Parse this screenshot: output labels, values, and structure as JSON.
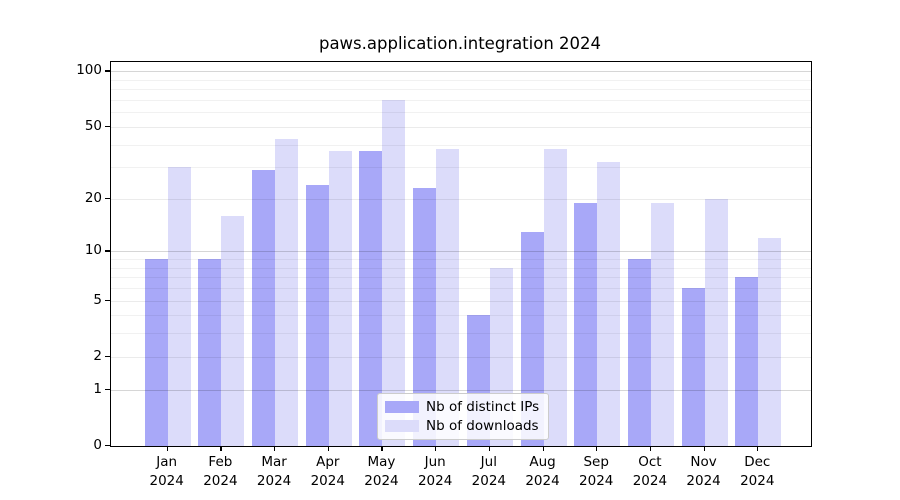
{
  "figure": {
    "title": "paws.application.integration 2024"
  },
  "chart_data": {
    "type": "bar",
    "title": "paws.application.integration 2024",
    "categories": [
      "Jan",
      "Feb",
      "Mar",
      "Apr",
      "May",
      "Jun",
      "Jul",
      "Aug",
      "Sep",
      "Oct",
      "Nov",
      "Dec"
    ],
    "x_sublabel": "2024",
    "series": [
      {
        "name": "Nb of distinct IPs",
        "color": "#a8a8f8",
        "values": [
          9,
          9,
          29,
          24,
          37,
          23,
          4,
          13,
          19,
          9,
          6,
          7
        ]
      },
      {
        "name": "Nb of downloads",
        "color": "#dcdcfa",
        "values": [
          30,
          16,
          43,
          37,
          70,
          38,
          8,
          38,
          32,
          19,
          20,
          12
        ]
      }
    ],
    "y_scale": "log1p",
    "y_ticks": [
      100,
      50,
      20,
      10,
      5,
      2,
      1,
      0
    ],
    "ylim": [
      0,
      115
    ],
    "xlabel": "",
    "ylabel": "",
    "grid": true,
    "legend_position": "bottom-center"
  },
  "legend": {
    "items": [
      {
        "label": "Nb of distinct IPs",
        "color": "#a8a8f8"
      },
      {
        "label": "Nb of downloads",
        "color": "#dcdcfa"
      }
    ]
  }
}
